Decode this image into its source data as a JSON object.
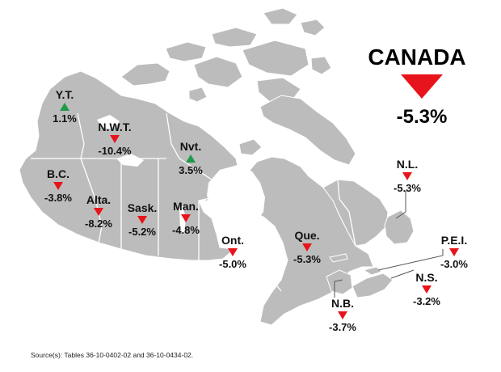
{
  "national": {
    "name": "CANADA",
    "value": "-5.3%",
    "direction": "down"
  },
  "regions": [
    {
      "id": "yt",
      "abbr": "Y.T.",
      "value": "1.1%",
      "direction": "up"
    },
    {
      "id": "nwt",
      "abbr": "N.W.T.",
      "value": "-10.4%",
      "direction": "down"
    },
    {
      "id": "nvt",
      "abbr": "Nvt.",
      "value": "3.5%",
      "direction": "up"
    },
    {
      "id": "bc",
      "abbr": "B.C.",
      "value": "-3.8%",
      "direction": "down"
    },
    {
      "id": "alta",
      "abbr": "Alta.",
      "value": "-8.2%",
      "direction": "down"
    },
    {
      "id": "sask",
      "abbr": "Sask.",
      "value": "-5.2%",
      "direction": "down"
    },
    {
      "id": "man",
      "abbr": "Man.",
      "value": "-4.8%",
      "direction": "down"
    },
    {
      "id": "ont",
      "abbr": "Ont.",
      "value": "-5.0%",
      "direction": "down"
    },
    {
      "id": "que",
      "abbr": "Que.",
      "value": "-5.3%",
      "direction": "down"
    },
    {
      "id": "nl",
      "abbr": "N.L.",
      "value": "-5.3%",
      "direction": "down"
    },
    {
      "id": "pei",
      "abbr": "P.E.I.",
      "value": "-3.0%",
      "direction": "down"
    },
    {
      "id": "ns",
      "abbr": "N.S.",
      "value": "-3.2%",
      "direction": "down"
    },
    {
      "id": "nb",
      "abbr": "N.B.",
      "value": "-3.7%",
      "direction": "down"
    }
  ],
  "colors": {
    "land": "#bcbcbc",
    "border": "#ffffff",
    "down": "#e8141b",
    "up": "#1f9a4a",
    "leader": "#555555"
  },
  "source": "Source(s): Tables 36-10-0402-02 and 36-10-0434-02."
}
